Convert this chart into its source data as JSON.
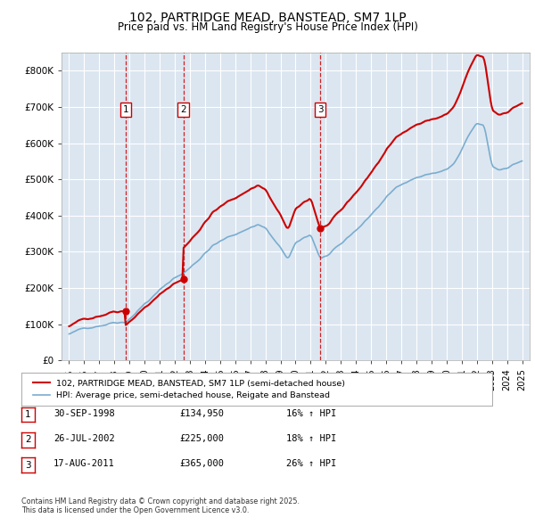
{
  "title": "102, PARTRIDGE MEAD, BANSTEAD, SM7 1LP",
  "subtitle": "Price paid vs. HM Land Registry's House Price Index (HPI)",
  "ylim": [
    0,
    850000
  ],
  "yticks": [
    0,
    100000,
    200000,
    300000,
    400000,
    500000,
    600000,
    700000,
    800000
  ],
  "ytick_labels": [
    "£0",
    "£100K",
    "£200K",
    "£300K",
    "£400K",
    "£500K",
    "£600K",
    "£700K",
    "£800K"
  ],
  "background_color": "#dce6f1",
  "grid_color": "#ffffff",
  "sale_color": "#cc0000",
  "hpi_color": "#7aadcf",
  "vline_color": "#cc0000",
  "sale_years_float": [
    1998.75,
    2002.57,
    2011.63
  ],
  "sale_prices": [
    134950,
    225000,
    365000
  ],
  "sale_labels": [
    "1",
    "2",
    "3"
  ],
  "legend_sale_label": "102, PARTRIDGE MEAD, BANSTEAD, SM7 1LP (semi-detached house)",
  "legend_hpi_label": "HPI: Average price, semi-detached house, Reigate and Banstead",
  "table_rows": [
    [
      "1",
      "30-SEP-1998",
      "£134,950",
      "16% ↑ HPI"
    ],
    [
      "2",
      "26-JUL-2002",
      "£225,000",
      "18% ↑ HPI"
    ],
    [
      "3",
      "17-AUG-2011",
      "£365,000",
      "26% ↑ HPI"
    ]
  ],
  "footer": "Contains HM Land Registry data © Crown copyright and database right 2025.\nThis data is licensed under the Open Government Licence v3.0.",
  "xlim_start": 1994.5,
  "xlim_end": 2025.5,
  "xtick_years": [
    1995,
    1996,
    1997,
    1998,
    1999,
    2000,
    2001,
    2002,
    2003,
    2004,
    2005,
    2006,
    2007,
    2008,
    2009,
    2010,
    2011,
    2012,
    2013,
    2014,
    2015,
    2016,
    2017,
    2018,
    2019,
    2020,
    2021,
    2022,
    2023,
    2024,
    2025
  ]
}
